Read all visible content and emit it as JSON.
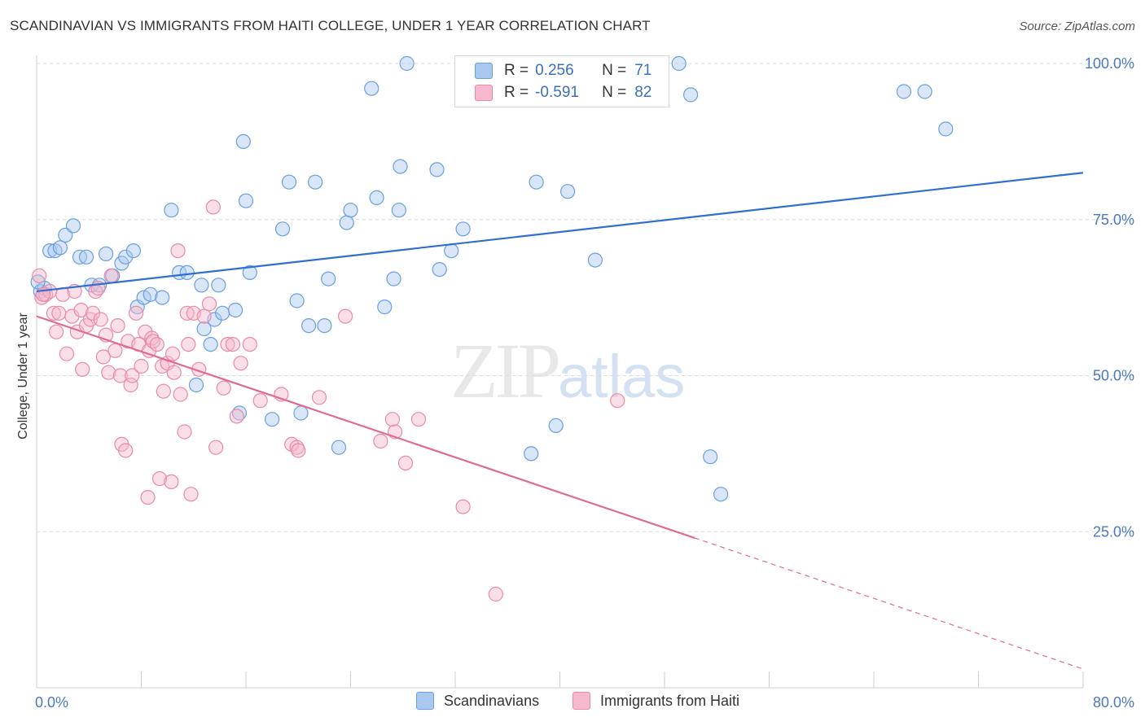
{
  "header": {
    "title": "SCANDINAVIAN VS IMMIGRANTS FROM HAITI COLLEGE, UNDER 1 YEAR CORRELATION CHART",
    "source": "Source: ZipAtlas.com"
  },
  "watermark": {
    "zip": "ZIP",
    "atlas": "atlas"
  },
  "stats": {
    "rows": [
      {
        "r_label": "R =",
        "r_value": "0.256",
        "n_label": "N =",
        "n_value": "71",
        "color": "#a9c8f0"
      },
      {
        "r_label": "R =",
        "r_value": "-0.591",
        "n_label": "N =",
        "n_value": "82",
        "color": "#f5b8cc"
      }
    ]
  },
  "legend": {
    "items": [
      {
        "label": "Scandinavians",
        "color": "#a9c8f0"
      },
      {
        "label": "Immigrants from Haiti",
        "color": "#f5b8cc"
      }
    ]
  },
  "chart_data": {
    "type": "scatter",
    "title": "SCANDINAVIAN VS IMMIGRANTS FROM HAITI COLLEGE, UNDER 1 YEAR CORRELATION CHART",
    "xlabel": "",
    "ylabel": "College, Under 1 year",
    "xlim": [
      0,
      80
    ],
    "ylim": [
      0,
      100
    ],
    "x_tick_labels": [
      "0.0%",
      "80.0%"
    ],
    "y_ticks": [
      25,
      50,
      75,
      100
    ],
    "y_tick_labels": [
      "25.0%",
      "50.0%",
      "75.0%",
      "100.0%"
    ],
    "grid": "horizontal dashed",
    "legend_position": "bottom-center",
    "series": [
      {
        "name": "Scandinavians",
        "color": "#6a9fe0",
        "fill": "#a9c8f0",
        "trend": {
          "x": [
            0,
            80
          ],
          "y": [
            63.5,
            82.5
          ],
          "color": "#2f6fcf"
        },
        "points": [
          [
            0.3,
            63.5
          ],
          [
            0.6,
            64
          ],
          [
            1.0,
            70
          ],
          [
            1.4,
            70
          ],
          [
            1.8,
            70.5
          ],
          [
            2.2,
            72.5
          ],
          [
            2.8,
            74
          ],
          [
            3.3,
            69
          ],
          [
            3.8,
            69
          ],
          [
            4.2,
            64.5
          ],
          [
            4.8,
            64.5
          ],
          [
            5.3,
            69.5
          ],
          [
            5.8,
            66
          ],
          [
            6.5,
            68
          ],
          [
            6.8,
            69
          ],
          [
            7.4,
            70
          ],
          [
            7.7,
            61
          ],
          [
            8.2,
            62.5
          ],
          [
            8.7,
            63
          ],
          [
            9.6,
            62.5
          ],
          [
            10.3,
            76.5
          ],
          [
            10.9,
            66.5
          ],
          [
            11.5,
            66.5
          ],
          [
            12.2,
            48.5
          ],
          [
            12.6,
            64.5
          ],
          [
            12.8,
            57.5
          ],
          [
            13.3,
            55
          ],
          [
            13.6,
            59
          ],
          [
            13.9,
            64.5
          ],
          [
            14.2,
            60
          ],
          [
            15.2,
            60.5
          ],
          [
            15.5,
            44
          ],
          [
            15.8,
            87.5
          ],
          [
            16.0,
            78
          ],
          [
            16.3,
            66.5
          ],
          [
            18.0,
            43
          ],
          [
            18.8,
            73.5
          ],
          [
            19.3,
            81
          ],
          [
            19.9,
            62
          ],
          [
            20.2,
            44
          ],
          [
            20.8,
            58
          ],
          [
            21.3,
            81
          ],
          [
            22.0,
            58
          ],
          [
            22.3,
            65.5
          ],
          [
            23.1,
            38.5
          ],
          [
            23.7,
            74.5
          ],
          [
            24.0,
            76.5
          ],
          [
            25.6,
            96
          ],
          [
            26.0,
            78.5
          ],
          [
            26.6,
            61
          ],
          [
            27.3,
            65.5
          ],
          [
            27.7,
            76.5
          ],
          [
            27.8,
            83.5
          ],
          [
            28.3,
            100
          ],
          [
            30.6,
            83
          ],
          [
            30.8,
            67
          ],
          [
            31.7,
            70
          ],
          [
            32.6,
            73.5
          ],
          [
            37.8,
            37.5
          ],
          [
            38.2,
            81
          ],
          [
            39.7,
            42
          ],
          [
            40.6,
            79.5
          ],
          [
            42.7,
            68.5
          ],
          [
            49.1,
            100
          ],
          [
            50.0,
            95
          ],
          [
            51.5,
            37
          ],
          [
            52.3,
            31
          ],
          [
            66.3,
            95.5
          ],
          [
            67.9,
            95.5
          ],
          [
            69.5,
            89.5
          ],
          [
            0.1,
            65
          ]
        ]
      },
      {
        "name": "Immigrants from Haiti",
        "color": "#e98aa8",
        "fill": "#f5b8cc",
        "trend": {
          "x": [
            0,
            50.3
          ],
          "y": [
            59.5,
            24
          ],
          "color": "#e06a96",
          "dash_to": {
            "x": 80,
            "y": 3
          }
        },
        "points": [
          [
            0.2,
            66
          ],
          [
            0.4,
            62.5
          ],
          [
            0.7,
            63
          ],
          [
            1.0,
            63.5
          ],
          [
            1.3,
            60
          ],
          [
            1.5,
            57
          ],
          [
            1.7,
            60
          ],
          [
            2.0,
            63
          ],
          [
            2.3,
            53.5
          ],
          [
            2.7,
            59.5
          ],
          [
            2.9,
            63.5
          ],
          [
            3.1,
            57
          ],
          [
            3.4,
            60.5
          ],
          [
            3.5,
            51
          ],
          [
            3.8,
            58
          ],
          [
            4.1,
            59
          ],
          [
            4.3,
            60
          ],
          [
            4.5,
            63.5
          ],
          [
            4.7,
            64
          ],
          [
            4.9,
            59
          ],
          [
            5.1,
            53
          ],
          [
            5.3,
            56.5
          ],
          [
            5.5,
            50.5
          ],
          [
            5.7,
            66
          ],
          [
            6.0,
            54
          ],
          [
            6.2,
            58
          ],
          [
            6.4,
            50
          ],
          [
            6.5,
            39
          ],
          [
            6.8,
            38
          ],
          [
            7.0,
            55.5
          ],
          [
            7.2,
            48.5
          ],
          [
            7.3,
            50
          ],
          [
            7.6,
            60
          ],
          [
            7.8,
            55
          ],
          [
            8.0,
            51.5
          ],
          [
            8.3,
            57
          ],
          [
            8.5,
            30.5
          ],
          [
            8.6,
            54
          ],
          [
            8.8,
            56
          ],
          [
            8.9,
            55.5
          ],
          [
            9.2,
            55
          ],
          [
            9.4,
            33.5
          ],
          [
            9.6,
            51.5
          ],
          [
            9.7,
            47.5
          ],
          [
            10.0,
            52
          ],
          [
            10.3,
            33
          ],
          [
            10.4,
            53.5
          ],
          [
            10.5,
            50.5
          ],
          [
            10.8,
            70
          ],
          [
            11.0,
            47
          ],
          [
            11.3,
            41
          ],
          [
            11.5,
            60
          ],
          [
            11.6,
            55
          ],
          [
            11.8,
            31
          ],
          [
            12.0,
            60
          ],
          [
            12.4,
            51
          ],
          [
            12.8,
            59.5
          ],
          [
            13.2,
            61.5
          ],
          [
            13.5,
            77
          ],
          [
            13.7,
            38.5
          ],
          [
            14.3,
            48
          ],
          [
            14.6,
            55
          ],
          [
            15.0,
            55
          ],
          [
            15.3,
            43.5
          ],
          [
            15.6,
            52
          ],
          [
            16.3,
            55
          ],
          [
            17.1,
            46
          ],
          [
            18.7,
            47
          ],
          [
            19.5,
            39
          ],
          [
            19.9,
            38.5
          ],
          [
            20.0,
            38
          ],
          [
            21.6,
            46.5
          ],
          [
            23.6,
            59.5
          ],
          [
            26.3,
            39.5
          ],
          [
            27.2,
            43
          ],
          [
            27.4,
            41
          ],
          [
            28.2,
            36
          ],
          [
            29.2,
            43
          ],
          [
            32.6,
            29
          ],
          [
            35.1,
            15
          ],
          [
            44.4,
            46
          ],
          [
            0.5,
            63
          ]
        ]
      }
    ]
  }
}
